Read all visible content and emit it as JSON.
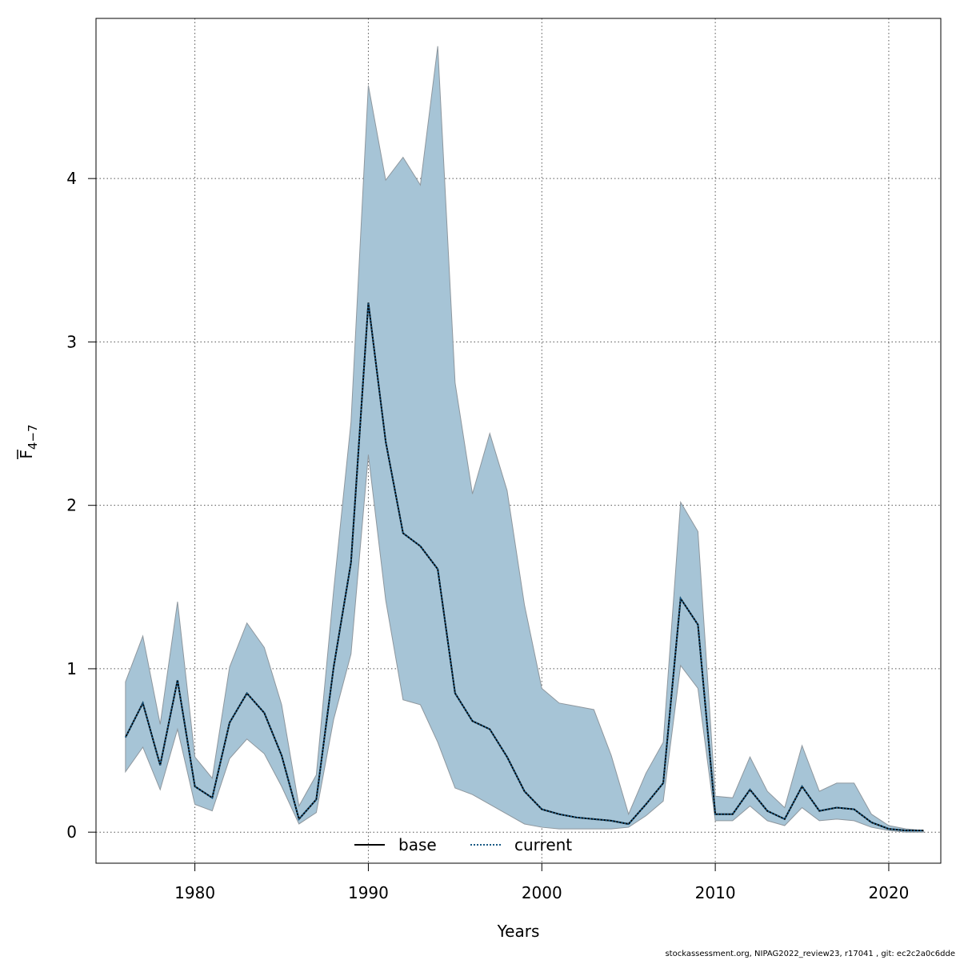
{
  "chart_data": {
    "type": "area",
    "xlabel": "Years",
    "ylabel": "F",
    "ylabel_subscript": "4−7",
    "xlim": [
      1974.3,
      2023.0
    ],
    "ylim": [
      -0.19,
      4.98
    ],
    "x_ticks": [
      1980,
      1990,
      2000,
      2010,
      2020
    ],
    "y_ticks": [
      0,
      1,
      2,
      3,
      4
    ],
    "grid": true,
    "legend": {
      "placement": "bottom",
      "entries": [
        "base",
        "current"
      ]
    },
    "colors": {
      "band": "#a6c4d6",
      "band_edge": "#8e979e",
      "current": "#1a5a85",
      "base": "#000000",
      "grid": "#555555"
    },
    "years": [
      1976,
      1977,
      1978,
      1979,
      1980,
      1981,
      1982,
      1983,
      1984,
      1985,
      1986,
      1987,
      1988,
      1989,
      1990,
      1991,
      1992,
      1993,
      1994,
      1995,
      1996,
      1997,
      1998,
      1999,
      2000,
      2001,
      2002,
      2003,
      2004,
      2005,
      2006,
      2007,
      2008,
      2009,
      2010,
      2011,
      2012,
      2013,
      2014,
      2015,
      2016,
      2017,
      2018,
      2019,
      2020,
      2021,
      2022
    ],
    "upper": [
      0.92,
      1.2,
      0.66,
      1.41,
      0.46,
      0.33,
      1.01,
      1.28,
      1.13,
      0.78,
      0.16,
      0.35,
      1.48,
      2.51,
      4.57,
      3.99,
      4.13,
      3.96,
      4.81,
      2.75,
      2.07,
      2.44,
      2.09,
      1.39,
      0.88,
      0.79,
      0.77,
      0.75,
      0.47,
      0.11,
      0.36,
      0.55,
      2.02,
      1.84,
      0.22,
      0.21,
      0.46,
      0.25,
      0.15,
      0.53,
      0.25,
      0.3,
      0.3,
      0.11,
      0.04,
      0.02,
      0.01
    ],
    "lower": [
      0.37,
      0.52,
      0.26,
      0.63,
      0.17,
      0.13,
      0.45,
      0.57,
      0.48,
      0.28,
      0.05,
      0.12,
      0.69,
      1.09,
      2.31,
      1.42,
      0.81,
      0.78,
      0.55,
      0.27,
      0.23,
      0.17,
      0.11,
      0.05,
      0.03,
      0.02,
      0.02,
      0.02,
      0.02,
      0.03,
      0.1,
      0.19,
      1.02,
      0.88,
      0.07,
      0.07,
      0.16,
      0.07,
      0.04,
      0.15,
      0.07,
      0.08,
      0.07,
      0.03,
      0.01,
      0.0,
      0.0
    ],
    "series": [
      {
        "name": "current",
        "values": [
          0.58,
          0.79,
          0.41,
          0.93,
          0.28,
          0.21,
          0.67,
          0.85,
          0.73,
          0.47,
          0.08,
          0.2,
          1.01,
          1.65,
          3.24,
          2.39,
          1.83,
          1.75,
          1.61,
          0.85,
          0.68,
          0.63,
          0.46,
          0.25,
          0.14,
          0.11,
          0.09,
          0.08,
          0.07,
          0.05,
          0.17,
          0.3,
          1.43,
          1.27,
          0.11,
          0.11,
          0.26,
          0.13,
          0.08,
          0.28,
          0.13,
          0.15,
          0.14,
          0.06,
          0.02,
          0.01,
          0.01
        ]
      },
      {
        "name": "base",
        "values": [
          0.58,
          0.79,
          0.41,
          0.93,
          0.28,
          0.21,
          0.67,
          0.85,
          0.73,
          0.47,
          0.08,
          0.2,
          1.01,
          1.65,
          3.24,
          2.39,
          1.83,
          1.75,
          1.61,
          0.85,
          0.68,
          0.63,
          0.46,
          0.25,
          0.14,
          0.11,
          0.09,
          0.08,
          0.07,
          0.05,
          0.17,
          0.3,
          1.43,
          1.27,
          0.11,
          0.11,
          0.26,
          0.13,
          0.08,
          0.28,
          0.13,
          0.15,
          0.14,
          0.06,
          0.02,
          0.01,
          0.01
        ]
      }
    ]
  },
  "footer": "stockassessment.org, NIPAG2022_review23, r17041 , git: ec2c2a0c6dde"
}
